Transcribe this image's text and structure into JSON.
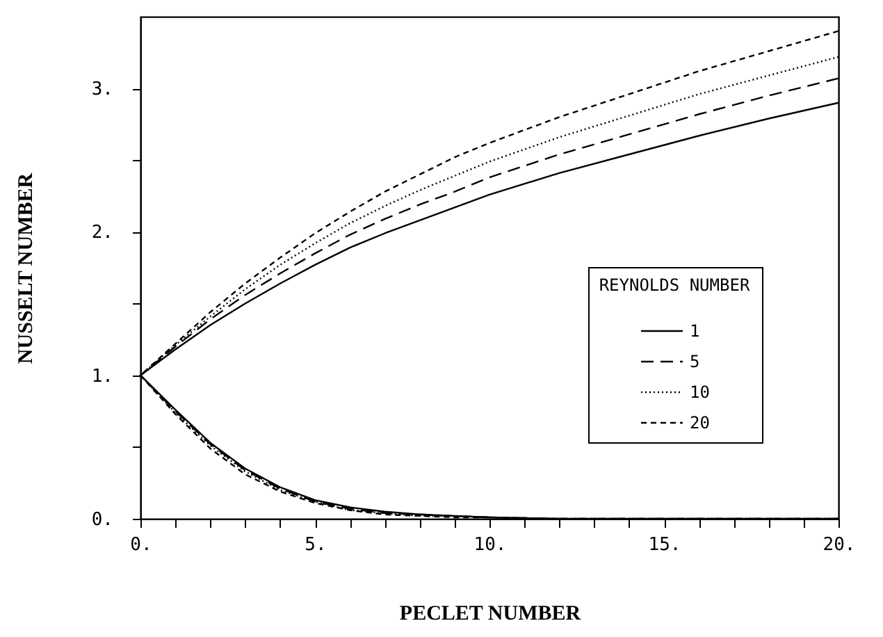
{
  "chart_data": {
    "type": "line",
    "xlabel": "PECLET NUMBER",
    "ylabel": "NUSSELT NUMBER",
    "legend_title": "REYNOLDS NUMBER",
    "legend": "bottom right",
    "grid": false,
    "marker": "none",
    "xlim": [
      0,
      20
    ],
    "ylim": [
      0,
      3.5
    ],
    "xticks": [
      {
        "value": 0,
        "label": "0."
      },
      {
        "value": 1,
        "label": null
      },
      {
        "value": 2,
        "label": null
      },
      {
        "value": 3,
        "label": null
      },
      {
        "value": 4,
        "label": null
      },
      {
        "value": 5,
        "label": "5."
      },
      {
        "value": 6,
        "label": null
      },
      {
        "value": 7,
        "label": null
      },
      {
        "value": 8,
        "label": null
      },
      {
        "value": 9,
        "label": null
      },
      {
        "value": 10,
        "label": "10."
      },
      {
        "value": 11,
        "label": null
      },
      {
        "value": 12,
        "label": null
      },
      {
        "value": 13,
        "label": null
      },
      {
        "value": 14,
        "label": null
      },
      {
        "value": 15,
        "label": "15."
      },
      {
        "value": 16,
        "label": null
      },
      {
        "value": 17,
        "label": null
      },
      {
        "value": 18,
        "label": null
      },
      {
        "value": 19,
        "label": null
      },
      {
        "value": 20,
        "label": "20."
      }
    ],
    "yticks": [
      {
        "value": 0,
        "label": "0."
      },
      {
        "value": 0.5,
        "label": null
      },
      {
        "value": 1,
        "label": "1."
      },
      {
        "value": 1.5,
        "label": null
      },
      {
        "value": 2,
        "label": "2."
      },
      {
        "value": 2.5,
        "label": null
      },
      {
        "value": 3,
        "label": "3."
      }
    ],
    "series": [
      {
        "name": "1",
        "color": "#000000",
        "line_style": "solid",
        "x": [
          20,
          18,
          16,
          14,
          12,
          10,
          9,
          8,
          7,
          6,
          5,
          4,
          3,
          2,
          1,
          0,
          1,
          2,
          3,
          4,
          5,
          6,
          7,
          8,
          9,
          10,
          12,
          14,
          16,
          18,
          20
        ],
        "values": [
          2.9,
          2.79,
          2.67,
          2.54,
          2.41,
          2.26,
          2.17,
          2.08,
          1.99,
          1.89,
          1.77,
          1.64,
          1.5,
          1.35,
          1.18,
          1.0,
          0.76,
          0.53,
          0.35,
          0.22,
          0.13,
          0.08,
          0.05,
          0.03,
          0.02,
          0.01,
          0.0,
          0.0,
          0.0,
          0.0,
          0.0
        ]
      },
      {
        "name": "5",
        "color": "#000000",
        "line_style": "dashed",
        "x": [
          20,
          18,
          16,
          14,
          12,
          10,
          9,
          8,
          7,
          6,
          5,
          4,
          3,
          2,
          1,
          0,
          1,
          2,
          3,
          4,
          5,
          6,
          7,
          8,
          9,
          10,
          12,
          14,
          16,
          18,
          20
        ],
        "values": [
          3.07,
          2.95,
          2.82,
          2.68,
          2.54,
          2.38,
          2.28,
          2.19,
          2.09,
          1.98,
          1.85,
          1.71,
          1.56,
          1.39,
          1.2,
          1.0,
          0.75,
          0.52,
          0.34,
          0.21,
          0.12,
          0.07,
          0.04,
          0.03,
          0.02,
          0.01,
          0.0,
          0.0,
          0.0,
          0.0,
          0.0
        ]
      },
      {
        "name": "10",
        "color": "#000000",
        "line_style": "dotted",
        "x": [
          20,
          18,
          16,
          14,
          12,
          10,
          9,
          8,
          7,
          6,
          5,
          4,
          3,
          2,
          1,
          0,
          1,
          2,
          3,
          4,
          5,
          6,
          7,
          8,
          9,
          10,
          12,
          14,
          16,
          18,
          20
        ],
        "values": [
          3.22,
          3.09,
          2.96,
          2.81,
          2.66,
          2.49,
          2.39,
          2.29,
          2.18,
          2.06,
          1.92,
          1.77,
          1.6,
          1.41,
          1.21,
          1.0,
          0.74,
          0.51,
          0.33,
          0.2,
          0.12,
          0.06,
          0.04,
          0.02,
          0.02,
          0.01,
          0.0,
          0.0,
          0.0,
          0.0,
          0.0
        ]
      },
      {
        "name": "20",
        "color": "#000000",
        "line_style": "dashed",
        "x": [
          20,
          18,
          16,
          14,
          12,
          10,
          9,
          8,
          7,
          6,
          5,
          4,
          3,
          2,
          1,
          0,
          1,
          2,
          3,
          4,
          5,
          6,
          7,
          8,
          9,
          10,
          12,
          14,
          16,
          18,
          20
        ],
        "values": [
          3.4,
          3.26,
          3.12,
          2.96,
          2.8,
          2.62,
          2.52,
          2.4,
          2.28,
          2.14,
          1.99,
          1.82,
          1.64,
          1.44,
          1.22,
          1.0,
          0.73,
          0.49,
          0.31,
          0.19,
          0.11,
          0.06,
          0.03,
          0.02,
          0.01,
          0.01,
          0.0,
          0.0,
          0.0,
          0.0,
          0.0
        ]
      }
    ]
  }
}
